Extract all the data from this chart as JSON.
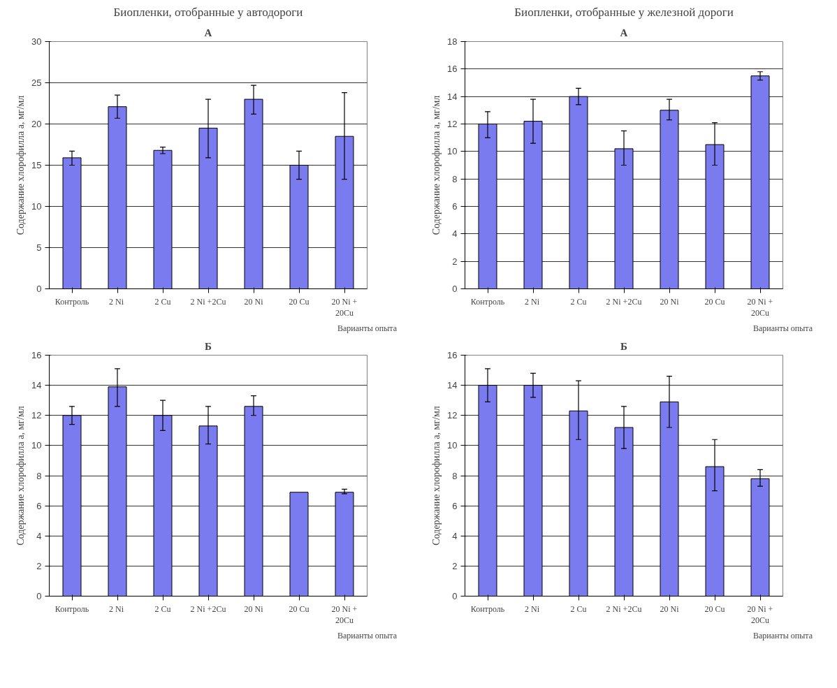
{
  "chart_data": [
    {
      "type": "bar",
      "title": "Биопленки, отобранные у автодороги",
      "subtitle": "А",
      "xlabel": "Варианты опыта",
      "ylabel": "Содержание хлорофилла а, мг/мл",
      "categories": [
        "Контроль",
        "2  Ni",
        "2 Cu",
        "2 Ni +2Cu",
        "20 Ni",
        "20 Cu",
        "20 Ni +\n20Cu"
      ],
      "color": "#7b7bf0",
      "values": [
        15.9,
        22.1,
        16.8,
        19.5,
        23,
        15,
        18.5
      ],
      "errors": [
        [
          15,
          16.7
        ],
        [
          20.7,
          23.5
        ],
        [
          16.4,
          17.2
        ],
        [
          15.9,
          23
        ],
        [
          21.2,
          24.7
        ],
        [
          13.3,
          16.7
        ],
        [
          13.3,
          23.8
        ]
      ],
      "ylim": [
        0,
        30
      ],
      "yticks": [
        0,
        5,
        10,
        15,
        20,
        25,
        30
      ],
      "grid": "y"
    },
    {
      "type": "bar",
      "title": "Биопленки, отобранные у железной дороги",
      "subtitle": "А",
      "xlabel": "Варианты опыта",
      "ylabel": "Содержание хлорофилла а, мг/мл",
      "categories": [
        "Контроль",
        "2  Ni",
        "2 Cu",
        "2 Ni +2Cu",
        "20 Ni",
        "20 Cu",
        "20 Ni +\n20Cu"
      ],
      "color": "#7b7bf0",
      "values": [
        12,
        12.2,
        14,
        10.2,
        13,
        10.5,
        15.5
      ],
      "errors": [
        [
          11,
          12.9
        ],
        [
          10.6,
          13.8
        ],
        [
          13.4,
          14.6
        ],
        [
          9,
          11.5
        ],
        [
          12.3,
          13.8
        ],
        [
          9,
          12.1
        ],
        [
          15.2,
          15.8
        ]
      ],
      "ylim": [
        0,
        18
      ],
      "yticks": [
        0,
        2,
        4,
        6,
        8,
        10,
        12,
        14,
        16,
        18
      ],
      "grid": "y"
    },
    {
      "type": "bar",
      "subtitle": "Б",
      "xlabel": "Варианты опыта",
      "ylabel": "Содержание хлорофилла а, мг/мл",
      "categories": [
        "Контроль",
        "2  Ni",
        "2 Cu",
        "2 Ni +2Cu",
        "20 Ni",
        "20 Cu",
        "20 Ni +\n20Cu"
      ],
      "color": "#7b7bf0",
      "values": [
        12,
        13.9,
        12,
        11.3,
        12.6,
        6.9,
        6.9
      ],
      "errors": [
        [
          11.4,
          12.6
        ],
        [
          12.6,
          15.1
        ],
        [
          11,
          13
        ],
        [
          10.1,
          12.6
        ],
        [
          12,
          13.3
        ],
        null,
        [
          6.8,
          7.1
        ]
      ],
      "ylim": [
        0,
        16
      ],
      "yticks": [
        0,
        2,
        4,
        6,
        8,
        10,
        12,
        14,
        16
      ],
      "grid": "y"
    },
    {
      "type": "bar",
      "subtitle": "Б",
      "xlabel": "Варианты опыта",
      "ylabel": "Содержание хлорофилла а, мг/мл",
      "categories": [
        "Контроль",
        "2  Ni",
        "2 Cu",
        "2 Ni +2Cu",
        "20 Ni",
        "20 Cu",
        "20 Ni +\n20Cu"
      ],
      "color": "#7b7bf0",
      "values": [
        14,
        14,
        12.3,
        11.2,
        12.9,
        8.6,
        7.8
      ],
      "errors": [
        [
          12.9,
          15.1
        ],
        [
          13.2,
          14.8
        ],
        [
          10.4,
          14.3
        ],
        [
          9.8,
          12.6
        ],
        [
          11.2,
          14.6
        ],
        [
          7,
          10.4
        ],
        [
          7.3,
          8.4
        ]
      ],
      "ylim": [
        0,
        16
      ],
      "yticks": [
        0,
        2,
        4,
        6,
        8,
        10,
        12,
        14,
        16
      ],
      "grid": "y"
    }
  ]
}
